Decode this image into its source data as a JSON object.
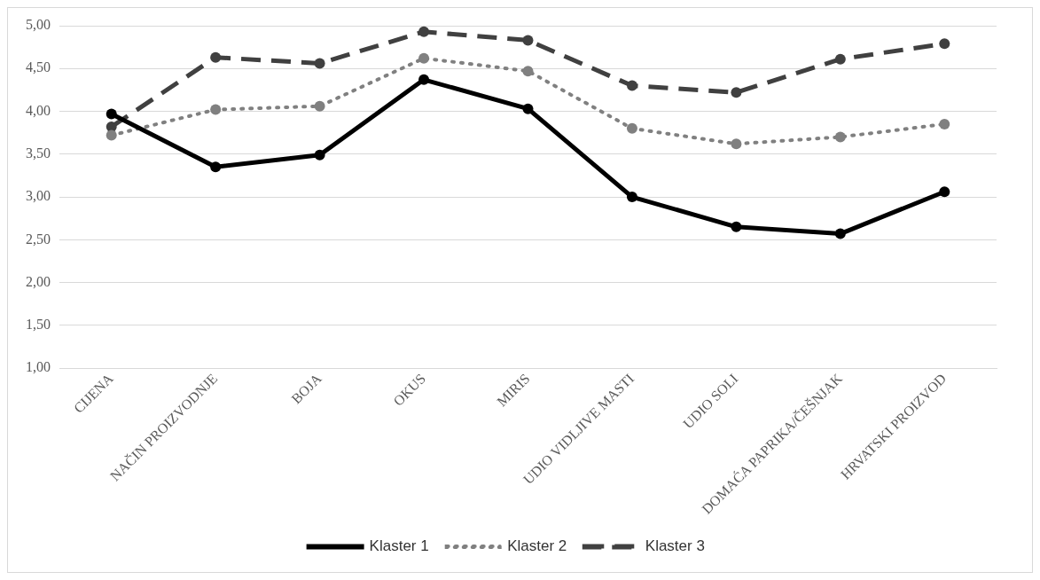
{
  "chart_data": {
    "type": "line",
    "categories": [
      "CIJENA",
      "NAČIN PROIZVODNJE",
      "BOJA",
      "OKUS",
      "MIRIS",
      "UDIO VIDLJIVE MASTI",
      "UDIO SOLI",
      "DOMAĆA PAPRIKA/ČEŠNJAK",
      "HRVATSKI PROIZVOD"
    ],
    "series": [
      {
        "name": "Klaster 1",
        "color": "#000000",
        "line_style": "solid",
        "values": [
          3.97,
          3.35,
          3.49,
          4.37,
          4.03,
          3.0,
          2.65,
          2.57,
          3.06
        ]
      },
      {
        "name": "Klaster 2",
        "color": "#808080",
        "line_style": "dotted",
        "values": [
          3.72,
          4.02,
          4.06,
          4.62,
          4.47,
          3.8,
          3.62,
          3.7,
          3.85
        ]
      },
      {
        "name": "Klaster 3",
        "color": "#404040",
        "line_style": "dashed",
        "values": [
          3.82,
          4.63,
          4.56,
          4.93,
          4.83,
          4.3,
          4.22,
          4.61,
          4.79
        ]
      }
    ],
    "ylim": [
      1,
      5
    ],
    "yticks": [
      {
        "value": 1,
        "label": "1,00"
      },
      {
        "value": 1.5,
        "label": "1,50"
      },
      {
        "value": 2,
        "label": "2,00"
      },
      {
        "value": 2.5,
        "label": "2,50"
      },
      {
        "value": 3,
        "label": "3,00"
      },
      {
        "value": 3.5,
        "label": "3,50"
      },
      {
        "value": 4,
        "label": "4,00"
      },
      {
        "value": 4.5,
        "label": "4,50"
      },
      {
        "value": 5,
        "label": "5,00"
      }
    ],
    "grid": "y",
    "legend": "bottom",
    "marker": "circle"
  }
}
